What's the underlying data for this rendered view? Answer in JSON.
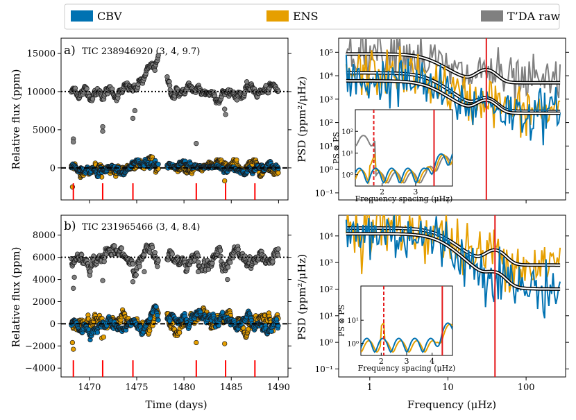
{
  "legend": {
    "items": [
      {
        "label": "CBV",
        "color": "#0072b2"
      },
      {
        "label": "ENS",
        "color": "#e69f00"
      },
      {
        "label": "T’DA raw",
        "color": "#808080"
      }
    ]
  },
  "colors": {
    "cbv": "#0072b2",
    "ens": "#e69f00",
    "raw": "#808080",
    "red": "#e41a1c",
    "marker_red": "#ff0000"
  },
  "chart_data": [
    {
      "type": "scatter",
      "panel": "a-lightcurve",
      "title": "a)",
      "star": "TIC 238946920 (3, 4, 9.7)",
      "xlabel": "Time (days)",
      "ylabel": "Relative flux (ppm)",
      "xlim": [
        1467,
        1491
      ],
      "ylim": [
        -4200,
        17000
      ],
      "yticks": [
        0,
        5000,
        10000,
        15000
      ],
      "ytick_labels": [
        "0",
        "5000",
        "10000",
        "15000"
      ],
      "offset_lines": [
        10000,
        0
      ],
      "series": [
        {
          "name": "T’DA raw",
          "offset": 10000,
          "scatter": 600
        },
        {
          "name": "ENS",
          "offset": 0,
          "scatter": 450
        },
        {
          "name": "CBV",
          "offset": 0,
          "scatter": 400
        }
      ],
      "gap": [
        1477.3,
        1478.2
      ],
      "red_markers_x": [
        1468.3,
        1471.4,
        1474.6,
        1481.3,
        1484.4,
        1487.5
      ]
    },
    {
      "type": "line",
      "panel": "a-psd",
      "xlabel": "Frequency (μHz)",
      "ylabel": "PSD (ppm²/μHz)",
      "xscale": "log",
      "yscale": "log",
      "xlim": [
        0.4,
        320
      ],
      "ylim": [
        0.05,
        400000
      ],
      "yticks": [
        0.1,
        1,
        10,
        100,
        1000,
        10000,
        100000
      ],
      "ytick_labels": [
        "10⁻¹",
        "10⁰",
        "10¹",
        "10²",
        "10³",
        "10⁴",
        "10⁵"
      ],
      "numax": 31,
      "series": [
        {
          "name": "T’DA raw",
          "level": 80000,
          "tail": 5000
        },
        {
          "name": "ENS",
          "level": 13000,
          "tail": 300
        },
        {
          "name": "CBV",
          "level": 5800,
          "tail": 250
        }
      ],
      "inset": {
        "xlabel": "Frequency spacing (μHz)",
        "ylabel": "PS ⊗ PS",
        "xlim": [
          1.2,
          4.1
        ],
        "ylim": [
          0.3,
          1000
        ],
        "xticks": [
          2,
          3
        ],
        "yticks_labels": [
          "10⁰",
          "10¹",
          "10²"
        ],
        "dashed_line_x": 1.75,
        "solid_line_x": 3.55
      }
    },
    {
      "type": "scatter",
      "panel": "b-lightcurve",
      "title": "b)",
      "star": "TIC 231965466 (3, 4, 8.4)",
      "xlabel": "Time (days)",
      "ylabel": "Relative flux (ppm)",
      "xlim": [
        1467,
        1491
      ],
      "ylim": [
        -4800,
        9800
      ],
      "xticks": [
        1470,
        1475,
        1480,
        1485,
        1490
      ],
      "xtick_labels": [
        "1470",
        "1475",
        "1480",
        "1485",
        "1490"
      ],
      "yticks": [
        -4000,
        -2000,
        0,
        2000,
        4000,
        6000,
        8000
      ],
      "ytick_labels": [
        "−4000",
        "−2000",
        "0",
        "2000",
        "4000",
        "6000",
        "8000"
      ],
      "offset_lines": [
        6000,
        0
      ],
      "series": [
        {
          "name": "T’DA raw",
          "offset": 6000,
          "scatter": 550
        },
        {
          "name": "ENS",
          "offset": 0,
          "scatter": 500
        },
        {
          "name": "CBV",
          "offset": 0,
          "scatter": 420
        }
      ],
      "gap": [
        1477.3,
        1478.2
      ],
      "red_markers_x": [
        1468.3,
        1471.4,
        1474.6,
        1481.3,
        1484.4,
        1487.5
      ]
    },
    {
      "type": "line",
      "panel": "b-psd",
      "xlabel": "Frequency (μHz)",
      "ylabel": "PSD (ppm²/μHz)",
      "xscale": "log",
      "yscale": "log",
      "xlim": [
        0.4,
        320
      ],
      "ylim": [
        0.05,
        60000
      ],
      "xticks": [
        1,
        10,
        100
      ],
      "xtick_labels": [
        "1",
        "10",
        "100"
      ],
      "yticks": [
        0.1,
        1,
        10,
        100,
        1000,
        10000
      ],
      "ytick_labels": [
        "10⁻¹",
        "10⁰",
        "10¹",
        "10²",
        "10³",
        "10⁴"
      ],
      "numax": 40,
      "series": [
        {
          "name": "ENS",
          "level": 19000,
          "tail": 800
        },
        {
          "name": "CBV",
          "level": 12000,
          "tail": 100
        }
      ],
      "inset": {
        "xlabel": "Frequency spacing (μHz)",
        "ylabel": "PS ⊗ PS",
        "xlim": [
          1.2,
          4.8
        ],
        "ylim": [
          0.3,
          300
        ],
        "xticks": [
          2,
          3,
          4
        ],
        "yticks_labels": [
          "10⁰",
          "10¹"
        ],
        "dashed_line_x": 2.1,
        "solid_line_x": 4.4
      }
    }
  ]
}
